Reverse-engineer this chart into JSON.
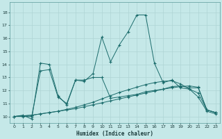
{
  "xlabel": "Humidex (Indice chaleur)",
  "background_color": "#c5e8e8",
  "grid_color": "#afd4d4",
  "line_color": "#1a6b6b",
  "xlim": [
    -0.5,
    23.5
  ],
  "ylim": [
    9.5,
    18.8
  ],
  "xticks": [
    0,
    1,
    2,
    3,
    4,
    5,
    6,
    7,
    8,
    9,
    10,
    11,
    12,
    13,
    14,
    15,
    16,
    17,
    18,
    19,
    20,
    21,
    22,
    23
  ],
  "yticks": [
    10,
    11,
    12,
    13,
    14,
    15,
    16,
    17,
    18
  ],
  "line1_x": [
    0,
    1,
    2,
    3,
    4,
    5,
    6,
    7,
    8,
    9,
    10,
    11,
    12,
    13,
    14,
    15,
    16,
    17,
    18,
    19,
    20,
    21,
    22,
    23
  ],
  "line1_y": [
    10.0,
    10.1,
    9.8,
    14.1,
    14.0,
    11.6,
    10.9,
    12.8,
    12.7,
    13.3,
    16.1,
    14.2,
    15.5,
    16.5,
    17.8,
    17.8,
    14.1,
    12.6,
    12.8,
    12.2,
    12.1,
    11.5,
    10.4,
    10.2
  ],
  "line2_x": [
    0,
    1,
    2,
    3,
    4,
    5,
    6,
    7,
    8,
    9,
    10,
    11,
    12,
    13,
    14,
    15,
    16,
    17,
    18,
    19,
    20,
    21,
    22,
    23
  ],
  "line2_y": [
    10.0,
    10.0,
    10.0,
    13.5,
    13.6,
    11.5,
    11.0,
    12.8,
    12.8,
    13.0,
    13.0,
    11.4,
    11.5,
    11.6,
    11.7,
    11.9,
    12.0,
    12.1,
    12.3,
    12.35,
    12.2,
    12.2,
    10.5,
    10.3
  ],
  "line3_x": [
    0,
    1,
    2,
    3,
    4,
    5,
    6,
    7,
    8,
    9,
    10,
    11,
    12,
    13,
    14,
    15,
    16,
    17,
    18,
    19,
    20,
    21,
    22,
    23
  ],
  "line3_y": [
    10.0,
    10.05,
    10.1,
    10.2,
    10.3,
    10.4,
    10.5,
    10.6,
    10.75,
    10.9,
    11.05,
    11.2,
    11.35,
    11.5,
    11.65,
    11.8,
    11.95,
    12.1,
    12.2,
    12.3,
    12.35,
    12.25,
    10.5,
    10.3
  ],
  "line4_x": [
    0,
    1,
    2,
    3,
    4,
    5,
    6,
    7,
    8,
    9,
    10,
    11,
    12,
    13,
    14,
    15,
    16,
    17,
    18,
    19,
    20,
    21,
    22,
    23
  ],
  "line4_y": [
    10.0,
    10.05,
    10.1,
    10.2,
    10.3,
    10.4,
    10.55,
    10.7,
    10.9,
    11.1,
    11.35,
    11.6,
    11.85,
    12.05,
    12.25,
    12.45,
    12.6,
    12.7,
    12.75,
    12.5,
    12.1,
    11.8,
    10.5,
    10.3
  ]
}
